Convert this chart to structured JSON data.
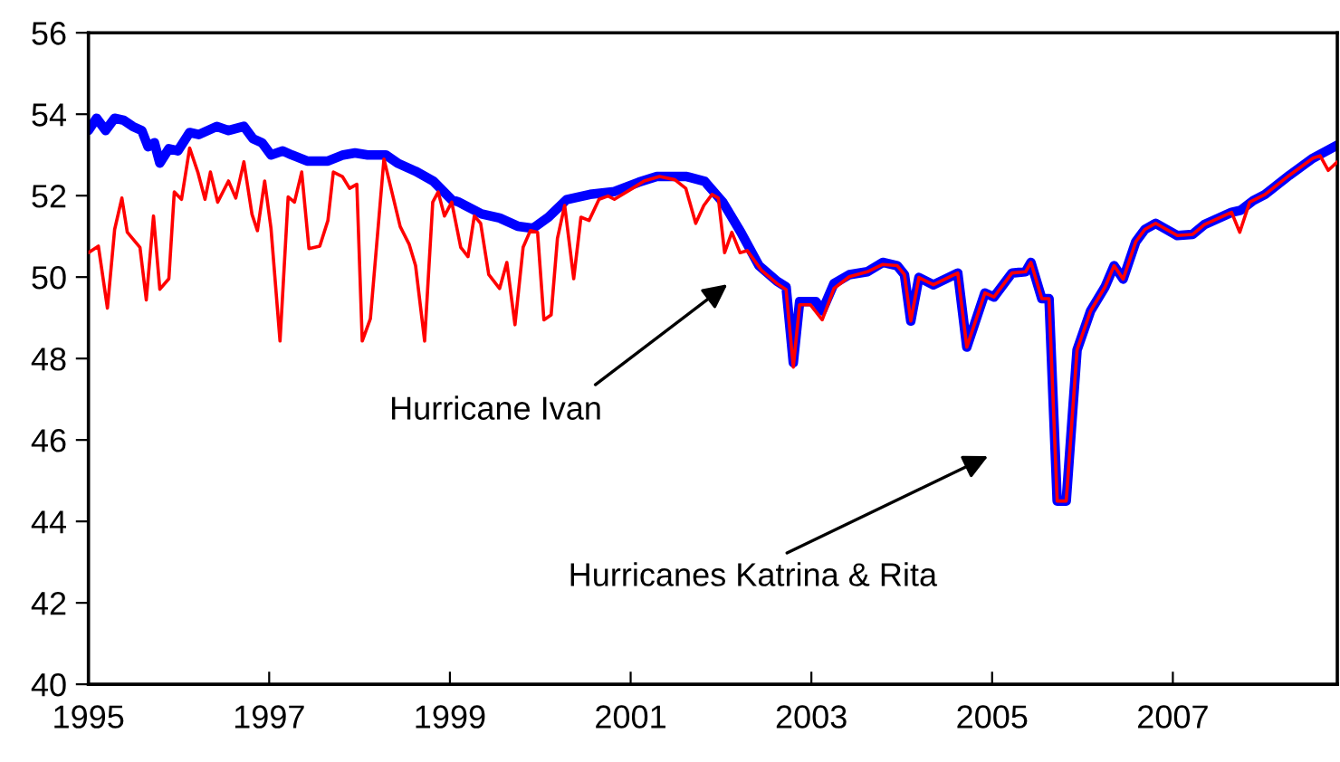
{
  "chart_data": {
    "type": "line",
    "xlim": [
      1995,
      2008.82
    ],
    "xticks": [
      1995,
      1997,
      1999,
      2001,
      2003,
      2005,
      2007
    ],
    "ylim": [
      40,
      56
    ],
    "yticks": [
      40,
      42,
      44,
      46,
      48,
      50,
      52,
      54,
      56
    ],
    "grid": false,
    "marker": "none",
    "line_style": "solid",
    "series": [
      {
        "color": "#0000ff",
        "x": [
          1995.0,
          1995.09,
          1995.19,
          1995.29,
          1995.39,
          1995.49,
          1995.59,
          1995.66,
          1995.73,
          1995.79,
          1995.89,
          1995.99,
          1996.12,
          1996.22,
          1996.42,
          1996.55,
          1996.72,
          1996.82,
          1996.92,
          1997.02,
          1997.15,
          1997.25,
          1997.42,
          1997.65,
          1997.82,
          1997.95,
          1998.09,
          1998.29,
          1998.42,
          1998.62,
          1998.82,
          1999.02,
          1999.09,
          1999.35,
          1999.55,
          1999.75,
          1999.92,
          2000.09,
          2000.29,
          2000.55,
          2000.82,
          2001.09,
          2001.29,
          2001.62,
          2001.82,
          2002.02,
          2002.22,
          2002.42,
          2002.62,
          2002.72,
          2002.8,
          2002.87,
          2003.05,
          2003.12,
          2003.25,
          2003.42,
          2003.62,
          2003.79,
          2003.95,
          2004.03,
          2004.1,
          2004.19,
          2004.35,
          2004.62,
          2004.72,
          2004.92,
          2005.02,
          2005.22,
          2005.37,
          2005.43,
          2005.55,
          2005.63,
          2005.72,
          2005.82,
          2005.94,
          2006.09,
          2006.25,
          2006.35,
          2006.45,
          2006.59,
          2006.69,
          2006.81,
          2007.05,
          2007.22,
          2007.35,
          2007.65,
          2007.75,
          2007.89,
          2008.02,
          2008.29,
          2008.55,
          2008.82
        ],
        "values": [
          53.6,
          53.9,
          53.6,
          53.9,
          53.85,
          53.7,
          53.6,
          53.2,
          53.3,
          52.8,
          53.15,
          53.1,
          53.55,
          53.5,
          53.7,
          53.6,
          53.7,
          53.4,
          53.3,
          53.0,
          53.1,
          53.0,
          52.85,
          52.85,
          53.0,
          53.05,
          53.0,
          53.0,
          52.8,
          52.6,
          52.35,
          51.9,
          51.85,
          51.55,
          51.45,
          51.25,
          51.2,
          51.47,
          51.9,
          52.03,
          52.1,
          52.33,
          52.47,
          52.47,
          52.35,
          51.84,
          51.1,
          50.28,
          49.9,
          49.76,
          47.9,
          49.4,
          49.4,
          49.17,
          49.84,
          50.06,
          50.13,
          50.36,
          50.28,
          50.06,
          48.92,
          49.99,
          49.81,
          50.1,
          48.28,
          49.61,
          49.51,
          50.1,
          50.13,
          50.36,
          49.47,
          49.47,
          44.5,
          44.5,
          48.21,
          49.17,
          49.76,
          50.28,
          49.95,
          50.87,
          51.17,
          51.32,
          51.02,
          51.05,
          51.29,
          51.59,
          51.64,
          51.88,
          52.03,
          52.5,
          52.92,
          53.24
        ]
      },
      {
        "color": "#ff0000",
        "x": [
          1995.0,
          1995.11,
          1995.21,
          1995.29,
          1995.37,
          1995.43,
          1995.57,
          1995.64,
          1995.72,
          1995.79,
          1995.89,
          1995.95,
          1996.03,
          1996.12,
          1996.21,
          1996.29,
          1996.35,
          1996.43,
          1996.55,
          1996.63,
          1996.72,
          1996.81,
          1996.87,
          1996.95,
          1997.02,
          1997.12,
          1997.21,
          1997.28,
          1997.36,
          1997.44,
          1997.56,
          1997.65,
          1997.71,
          1997.81,
          1997.89,
          1997.97,
          1998.03,
          1998.12,
          1998.27,
          1998.45,
          1998.55,
          1998.62,
          1998.72,
          1998.81,
          1998.87,
          1998.94,
          1999.02,
          1999.12,
          1999.2,
          1999.27,
          1999.34,
          1999.43,
          1999.55,
          1999.63,
          1999.72,
          1999.81,
          1999.89,
          1999.97,
          2000.04,
          2000.12,
          2000.19,
          2000.27,
          2000.37,
          2000.45,
          2000.54,
          2000.65,
          2000.75,
          2000.82,
          2001.02,
          2001.15,
          2001.32,
          2001.49,
          2001.61,
          2001.72,
          2001.81,
          2001.9,
          2001.97,
          2002.04,
          2002.12,
          2002.21,
          2002.29,
          2002.45,
          2002.62,
          2002.72,
          2002.8,
          2002.87,
          2002.99,
          2003.12,
          2003.25,
          2003.42,
          2003.62,
          2003.79,
          2003.95,
          2004.03,
          2004.1,
          2004.19,
          2004.35,
          2004.62,
          2004.72,
          2004.92,
          2005.02,
          2005.22,
          2005.37,
          2005.43,
          2005.55,
          2005.63,
          2005.72,
          2005.82,
          2005.94,
          2006.09,
          2006.25,
          2006.35,
          2006.45,
          2006.59,
          2006.69,
          2006.81,
          2007.05,
          2007.22,
          2007.35,
          2007.65,
          2007.74,
          2007.85,
          2008.02,
          2008.29,
          2008.55,
          2008.63,
          2008.72,
          2008.82
        ],
        "values": [
          50.6,
          50.76,
          49.24,
          51.17,
          51.94,
          51.1,
          50.73,
          49.44,
          51.5,
          49.7,
          49.96,
          52.09,
          51.91,
          53.17,
          52.58,
          51.91,
          52.58,
          51.84,
          52.36,
          51.94,
          52.83,
          51.54,
          51.14,
          52.36,
          51.2,
          48.43,
          51.97,
          51.84,
          52.58,
          50.7,
          50.76,
          51.39,
          52.58,
          52.47,
          52.18,
          52.28,
          48.43,
          48.98,
          52.9,
          51.24,
          50.8,
          50.28,
          48.43,
          51.84,
          52.09,
          51.5,
          51.84,
          50.73,
          50.5,
          51.5,
          51.32,
          50.06,
          49.72,
          50.36,
          48.83,
          50.73,
          51.14,
          51.1,
          48.95,
          49.07,
          50.95,
          51.76,
          49.96,
          51.47,
          51.39,
          51.91,
          51.99,
          51.91,
          52.18,
          52.36,
          52.47,
          52.39,
          52.18,
          51.32,
          51.76,
          52.03,
          51.94,
          50.6,
          51.1,
          50.6,
          50.65,
          50.16,
          49.84,
          49.69,
          47.79,
          49.32,
          49.32,
          48.95,
          49.72,
          50.01,
          50.13,
          50.31,
          50.28,
          50.06,
          48.92,
          49.99,
          49.81,
          50.1,
          48.28,
          49.61,
          49.51,
          50.1,
          50.13,
          50.36,
          49.47,
          49.47,
          44.5,
          44.5,
          48.21,
          49.17,
          49.76,
          50.28,
          49.95,
          50.87,
          51.17,
          51.32,
          51.02,
          51.05,
          51.29,
          51.59,
          51.1,
          51.84,
          52.03,
          52.5,
          52.92,
          52.98,
          52.62,
          52.83
        ]
      }
    ],
    "annotations": [
      "Hurricane Ivan",
      "Hurricanes Katrina & Rita"
    ]
  }
}
